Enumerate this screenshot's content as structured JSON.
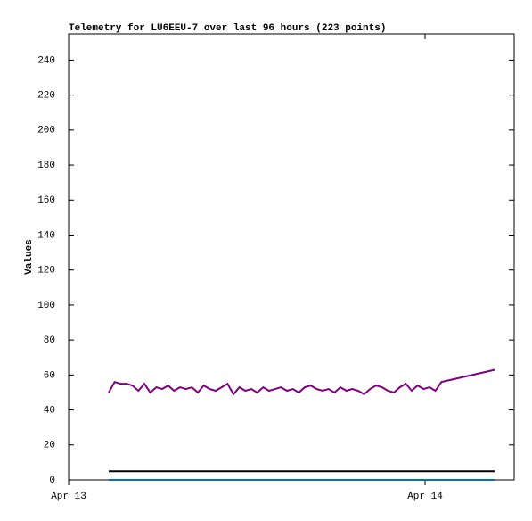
{
  "chart_data": {
    "type": "line",
    "title": "Telemetry for LU6EEU-7 over last 96 hours (223 points)",
    "y_label": "Values",
    "xlim": [
      0,
      30
    ],
    "xticks": [
      {
        "value": 0,
        "label": "Apr 13"
      },
      {
        "value": 24,
        "label": "Apr 14"
      }
    ],
    "ylim": [
      0,
      255
    ],
    "yticks": [
      0,
      20,
      40,
      60,
      80,
      100,
      120,
      140,
      160,
      180,
      200,
      220,
      240
    ],
    "series": [
      {
        "color": "#0072b2",
        "x": [
          2.7,
          28.7
        ],
        "values": [
          0,
          0
        ]
      },
      {
        "color": "#000000",
        "x": [
          2.7,
          28.7
        ],
        "values": [
          5,
          5
        ]
      },
      {
        "color": "#800080",
        "x": [
          2.7,
          3.1,
          3.5,
          3.9,
          4.3,
          4.7,
          5.1,
          5.5,
          5.9,
          6.3,
          6.7,
          7.1,
          7.5,
          7.9,
          8.3,
          8.7,
          9.1,
          9.5,
          9.9,
          10.3,
          10.7,
          11.1,
          11.5,
          11.9,
          12.3,
          12.7,
          13.1,
          13.5,
          13.9,
          14.3,
          14.7,
          15.1,
          15.5,
          15.9,
          16.3,
          16.7,
          17.1,
          17.5,
          17.9,
          18.3,
          18.7,
          19.1,
          19.5,
          19.9,
          20.3,
          20.7,
          21.1,
          21.5,
          21.9,
          22.3,
          22.7,
          23.1,
          23.5,
          23.9,
          24.3,
          24.7,
          25.1,
          28.7
        ],
        "values": [
          50,
          56,
          55,
          55,
          54,
          51,
          55,
          50,
          53,
          52,
          54,
          51,
          53,
          52,
          53,
          50,
          54,
          52,
          51,
          53,
          55,
          49,
          53,
          51,
          52,
          50,
          53,
          51,
          52,
          53,
          51,
          52,
          50,
          53,
          54,
          52,
          51,
          52,
          50,
          53,
          51,
          52,
          51,
          49,
          52,
          54,
          53,
          51,
          50,
          53,
          55,
          51,
          54,
          52,
          53,
          51,
          56,
          63
        ]
      }
    ]
  }
}
